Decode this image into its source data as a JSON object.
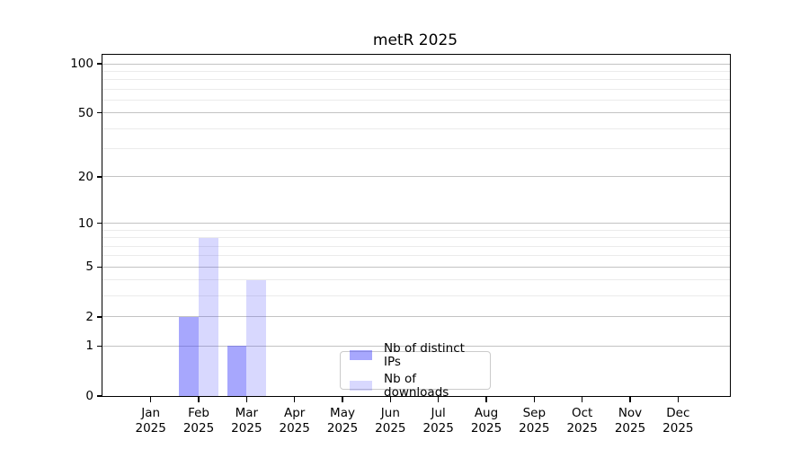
{
  "title": "metR 2025",
  "chart_data": {
    "type": "bar",
    "title": "metR 2025",
    "x": {
      "months": [
        "Jan",
        "Feb",
        "Mar",
        "Apr",
        "May",
        "Jun",
        "Jul",
        "Aug",
        "Sep",
        "Oct",
        "Nov",
        "Dec"
      ],
      "year": "2025"
    },
    "series": [
      {
        "name": "Nb of distinct IPs",
        "color": "rgba(60,60,250,0.45)",
        "values": [
          0,
          2,
          1,
          0,
          0,
          0,
          0,
          0,
          0,
          0,
          0,
          0
        ]
      },
      {
        "name": "Nb of downloads",
        "color": "rgba(60,60,250,0.20)",
        "values": [
          0,
          8,
          4,
          0,
          0,
          0,
          0,
          0,
          0,
          0,
          0,
          0
        ]
      }
    ],
    "y_axis": {
      "scale": "log1p",
      "tick_values": [
        0,
        1,
        2,
        5,
        10,
        20,
        50,
        100
      ],
      "minor_gridline_values": [
        3,
        4,
        6,
        7,
        8,
        9,
        30,
        40,
        60,
        70,
        80,
        90
      ],
      "ylim": [
        0,
        113
      ]
    },
    "legend": {
      "position": "lower center",
      "entries": [
        "Nb of distinct IPs",
        "Nb of downloads"
      ]
    },
    "grid": "horizontal, major + minor"
  },
  "colors": {
    "major_grid": "#c3c3c3",
    "minor_grid": "#ebebeb",
    "axis": "#000000",
    "legend_border": "#cbcbcb"
  }
}
